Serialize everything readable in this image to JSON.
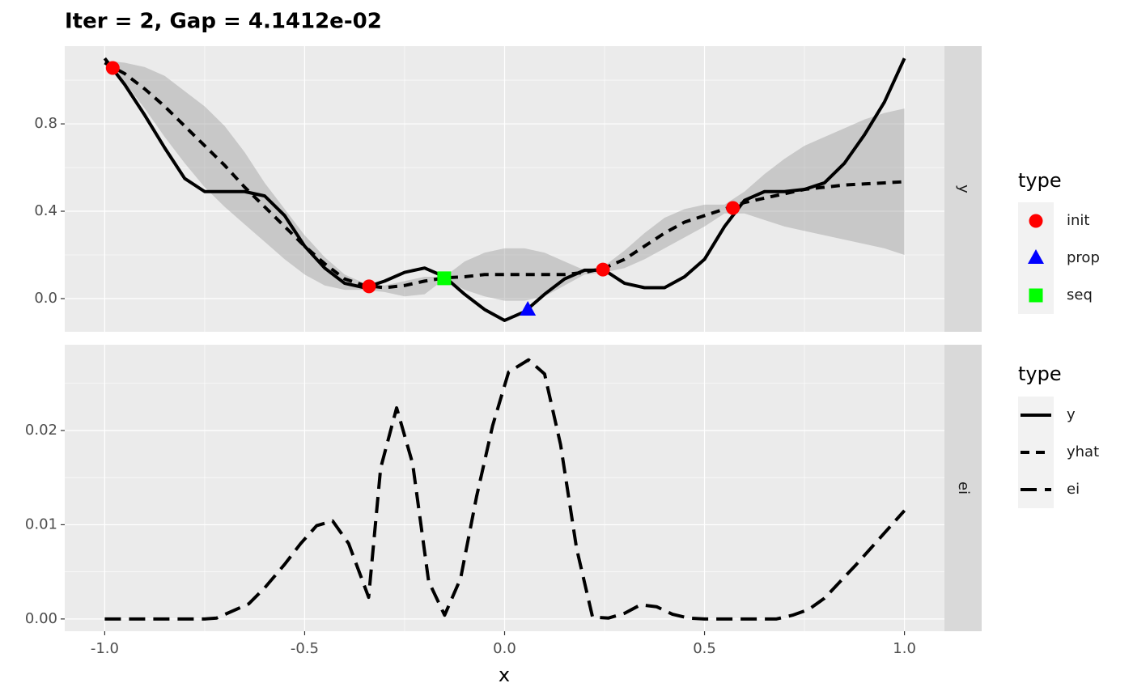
{
  "chart_data": [
    {
      "type": "line",
      "title": "Iter = 2, Gap = 4.1412e-02",
      "facet": "y",
      "grid": true,
      "xlim": [
        -1.1,
        1.1
      ],
      "ylim": [
        -0.152,
        1.156
      ],
      "yticks": [
        {
          "value": 0,
          "label": "0.0"
        },
        {
          "value": 0.4,
          "label": "0.4"
        },
        {
          "value": 0.8,
          "label": "0.8"
        }
      ],
      "legend_title": "type",
      "band": {
        "color": "#949494",
        "alpha": 0.4,
        "x": [
          -1,
          -0.95,
          -0.9,
          -0.85,
          -0.8,
          -0.75,
          -0.7,
          -0.65,
          -0.6,
          -0.55,
          -0.5,
          -0.45,
          -0.4,
          -0.35,
          -0.3,
          -0.25,
          -0.2,
          -0.15,
          -0.1,
          -0.05,
          0,
          0.05,
          0.1,
          0.15,
          0.2,
          0.25,
          0.3,
          0.35,
          0.4,
          0.45,
          0.5,
          0.55,
          0.6,
          0.65,
          0.7,
          0.75,
          0.8,
          0.85,
          0.9,
          0.95,
          1
        ],
        "lower": [
          1.07,
          0.99,
          0.87,
          0.74,
          0.62,
          0.51,
          0.42,
          0.34,
          0.26,
          0.18,
          0.11,
          0.06,
          0.04,
          0.04,
          0.03,
          0.01,
          0.02,
          0.09,
          0.04,
          0.01,
          -0.01,
          -0.01,
          0.01,
          0.06,
          0.11,
          0.12,
          0.14,
          0.18,
          0.23,
          0.28,
          0.33,
          0.39,
          0.39,
          0.36,
          0.33,
          0.31,
          0.29,
          0.27,
          0.25,
          0.23,
          0.2
        ],
        "upper": [
          1.09,
          1.08,
          1.06,
          1.02,
          0.95,
          0.88,
          0.79,
          0.67,
          0.53,
          0.41,
          0.29,
          0.19,
          0.11,
          0.07,
          0.06,
          0.08,
          0.1,
          0.1,
          0.17,
          0.21,
          0.23,
          0.23,
          0.21,
          0.17,
          0.13,
          0.15,
          0.22,
          0.3,
          0.37,
          0.41,
          0.43,
          0.43,
          0.49,
          0.57,
          0.64,
          0.7,
          0.74,
          0.78,
          0.82,
          0.85,
          0.87
        ]
      },
      "series": [
        {
          "name": "y",
          "dash": "solid",
          "color": "#000000",
          "x": [
            -1,
            -0.95,
            -0.9,
            -0.85,
            -0.8,
            -0.75,
            -0.7,
            -0.65,
            -0.6,
            -0.55,
            -0.5,
            -0.45,
            -0.4,
            -0.35,
            -0.3,
            -0.25,
            -0.2,
            -0.15,
            -0.1,
            -0.05,
            0,
            0.05,
            0.1,
            0.15,
            0.2,
            0.25,
            0.3,
            0.35,
            0.4,
            0.45,
            0.5,
            0.55,
            0.6,
            0.65,
            0.7,
            0.75,
            0.8,
            0.85,
            0.9,
            0.95,
            1
          ],
          "values": [
            1.1,
            0.98,
            0.84,
            0.69,
            0.55,
            0.49,
            0.49,
            0.49,
            0.47,
            0.38,
            0.24,
            0.14,
            0.07,
            0.05,
            0.08,
            0.12,
            0.14,
            0.1,
            0.02,
            -0.05,
            -0.1,
            -0.06,
            0.02,
            0.09,
            0.13,
            0.13,
            0.07,
            0.05,
            0.05,
            0.1,
            0.18,
            0.33,
            0.45,
            0.49,
            0.49,
            0.5,
            0.53,
            0.62,
            0.75,
            0.9,
            1.1
          ]
        },
        {
          "name": "yhat",
          "dash": "dotted",
          "color": "#000000",
          "x": [
            -1,
            -0.95,
            -0.9,
            -0.85,
            -0.8,
            -0.75,
            -0.7,
            -0.65,
            -0.6,
            -0.55,
            -0.5,
            -0.45,
            -0.4,
            -0.35,
            -0.3,
            -0.25,
            -0.2,
            -0.15,
            -0.1,
            -0.05,
            0,
            0.05,
            0.1,
            0.15,
            0.2,
            0.25,
            0.3,
            0.35,
            0.4,
            0.45,
            0.5,
            0.55,
            0.6,
            0.65,
            0.7,
            0.75,
            0.8,
            0.85,
            0.9,
            0.95,
            1
          ],
          "values": [
            1.08,
            1.03,
            0.96,
            0.88,
            0.79,
            0.7,
            0.61,
            0.51,
            0.42,
            0.33,
            0.24,
            0.16,
            0.09,
            0.06,
            0.05,
            0.06,
            0.08,
            0.095,
            0.1,
            0.11,
            0.11,
            0.11,
            0.11,
            0.11,
            0.12,
            0.14,
            0.18,
            0.24,
            0.3,
            0.35,
            0.38,
            0.41,
            0.44,
            0.46,
            0.48,
            0.5,
            0.51,
            0.52,
            0.525,
            0.53,
            0.535
          ]
        }
      ],
      "points": [
        {
          "name": "init",
          "shape": "circle",
          "color": "#ff0000",
          "x": [
            -0.98,
            -0.339,
            0.246,
            0.571
          ],
          "values": [
            1.056,
            0.056,
            0.133,
            0.415
          ]
        },
        {
          "name": "prop",
          "shape": "triangle",
          "color": "#0000ff",
          "x": [
            0.058
          ],
          "values": [
            -0.052
          ]
        },
        {
          "name": "seq",
          "shape": "square",
          "color": "#00ff00",
          "x": [
            -0.151
          ],
          "values": [
            0.093
          ]
        }
      ]
    },
    {
      "type": "line",
      "facet": "ei",
      "xlabel": "x",
      "grid": true,
      "xlim": [
        -1.1,
        1.1
      ],
      "ylim": [
        -0.0013,
        0.0291
      ],
      "xticks": [
        {
          "value": -1,
          "label": "-1.0"
        },
        {
          "value": -0.5,
          "label": "-0.5"
        },
        {
          "value": 0,
          "label": "0.0"
        },
        {
          "value": 0.5,
          "label": "0.5"
        },
        {
          "value": 1,
          "label": "1.0"
        }
      ],
      "yticks": [
        {
          "value": 0,
          "label": "0.00"
        },
        {
          "value": 0.01,
          "label": "0.01"
        },
        {
          "value": 0.02,
          "label": "0.02"
        }
      ],
      "legend_title": "type",
      "series": [
        {
          "name": "ei",
          "dash": "dashed",
          "color": "#000000",
          "x": [
            -1,
            -0.75,
            -0.72,
            -0.64,
            -0.6,
            -0.55,
            -0.51,
            -0.47,
            -0.43,
            -0.39,
            -0.34,
            -0.31,
            -0.27,
            -0.23,
            -0.19,
            -0.15,
            -0.11,
            -0.07,
            -0.03,
            0.01,
            0.06,
            0.1,
            0.14,
            0.18,
            0.22,
            0.26,
            0.3,
            0.34,
            0.38,
            0.42,
            0.46,
            0.5,
            0.68,
            0.72,
            0.76,
            0.8,
            0.84,
            0.88,
            0.92,
            0.96,
            1
          ],
          "values": [
            0,
            0,
            0.0001,
            0.0016,
            0.0033,
            0.0058,
            0.008,
            0.0099,
            0.0104,
            0.008,
            0.0023,
            0.016,
            0.0224,
            0.0165,
            0.004,
            0.0004,
            0.0043,
            0.013,
            0.0205,
            0.0262,
            0.0275,
            0.026,
            0.0185,
            0.0075,
            0.0002,
            0.0001,
            0.0006,
            0.0015,
            0.0013,
            0.0005,
            0.0001,
            0,
            0,
            0.0004,
            0.001,
            0.0022,
            0.004,
            0.0058,
            0.0077,
            0.0096,
            0.0115
          ]
        }
      ]
    }
  ]
}
